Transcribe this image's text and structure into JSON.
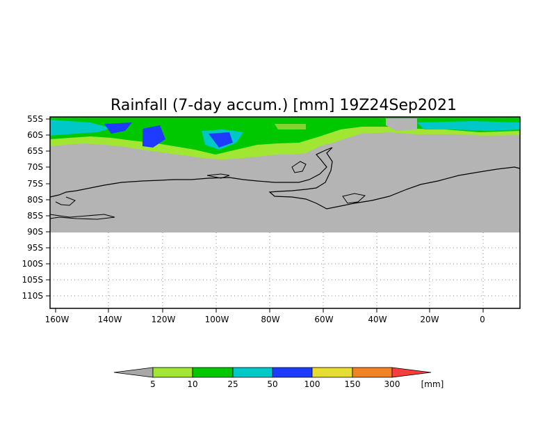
{
  "title": "Rainfall (7-day accum.) [mm] 19Z24Sep2021",
  "y_ticks": [
    "55S",
    "60S",
    "65S",
    "70S",
    "75S",
    "80S",
    "85S",
    "90S",
    "95S",
    "100S",
    "105S",
    "110S"
  ],
  "x_ticks": [
    "160W",
    "140W",
    "120W",
    "100W",
    "80W",
    "60W",
    "40W",
    "20W",
    "0"
  ],
  "colorbar": {
    "labels": [
      "5",
      "10",
      "25",
      "50",
      "100",
      "150",
      "300"
    ],
    "unit": "[mm]",
    "under_color": "#a8a8a8",
    "colors": [
      "#a0e632",
      "#00c800",
      "#00c8c8",
      "#1e3cff",
      "#e6dc32",
      "#f08228",
      "#fa3c3c"
    ]
  },
  "colors": {
    "land": "#b4b4b4",
    "ocean_light_green": "#a0e632",
    "green": "#00c800",
    "cyan": "#00c8c8",
    "blue": "#1e3cff"
  }
}
